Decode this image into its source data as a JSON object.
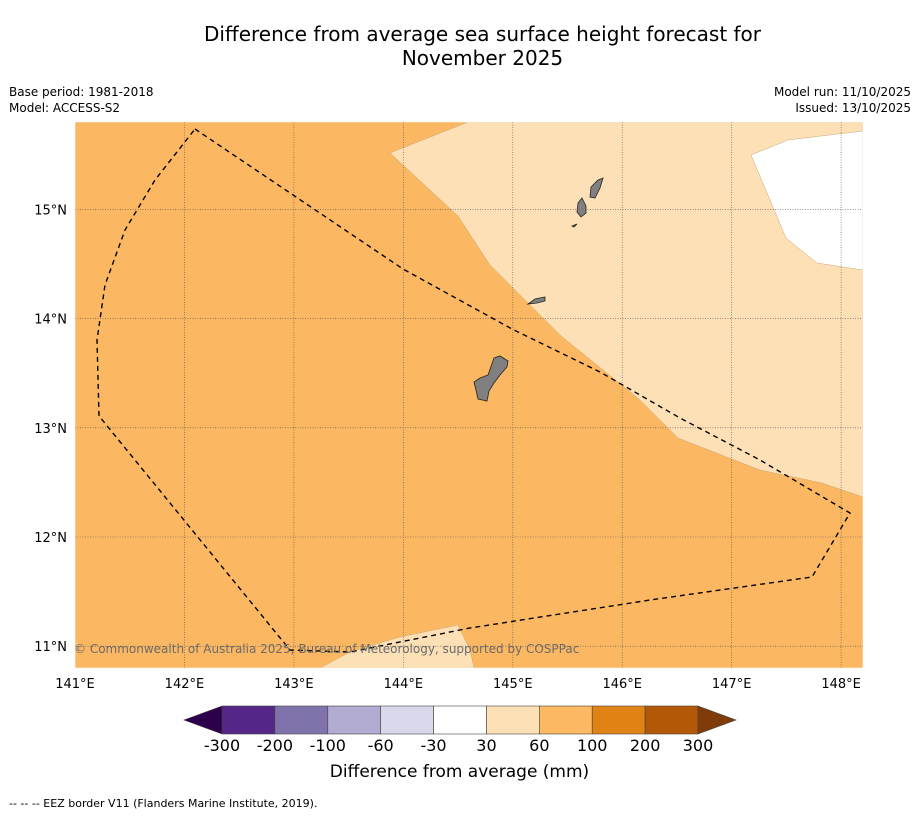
{
  "title_line1": "Difference from average sea surface height forecast for",
  "title_line2": "November 2025",
  "meta": {
    "base_period": "Base period: 1981-2018",
    "model": "Model: ACCESS-S2",
    "model_run": "Model run: 11/10/2025",
    "issued": "Issued: 13/10/2025"
  },
  "map": {
    "lon_range": [
      141,
      148.2
    ],
    "lat_range": [
      10.8,
      15.8
    ],
    "lon_ticks": [
      141,
      142,
      143,
      144,
      145,
      146,
      147,
      148
    ],
    "lat_ticks": [
      11,
      12,
      13,
      14,
      15
    ],
    "lon_labels": [
      "141°E",
      "142°E",
      "143°E",
      "144°E",
      "145°E",
      "146°E",
      "147°E",
      "148°E"
    ],
    "lat_labels": [
      "11°N",
      "12°N",
      "13°N",
      "14°N",
      "15°N"
    ],
    "copyright": "© Commonwealth of Australia 2025, Bureau of Meteorology, supported by COSPPac"
  },
  "colorbar": {
    "labels": [
      "-300",
      "-200",
      "-100",
      "-60",
      "-30",
      "30",
      "60",
      "100",
      "200",
      "300"
    ],
    "colors": [
      "#542788",
      "#8073ac",
      "#b2abd2",
      "#d8daeb",
      "#ffffff",
      "#fee0b6",
      "#fdb863",
      "#e08214",
      "#b35806"
    ],
    "under_color": "#2d004b",
    "over_color": "#7f3b08",
    "title": "Difference from average (mm)"
  },
  "footer": "--  --  -- EEZ border V11 (Flanders Marine Institute, 2019)."
}
